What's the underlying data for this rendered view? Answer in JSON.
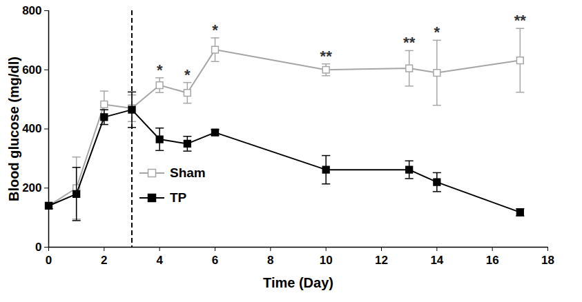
{
  "chart_data": {
    "type": "line",
    "x_label": "Time (Day)",
    "y_label": "Blood glucose (mg/dl)",
    "xlim": [
      0,
      18
    ],
    "xticks": [
      0,
      2,
      4,
      6,
      8,
      10,
      12,
      14,
      16,
      18
    ],
    "ylim": [
      0,
      800
    ],
    "yticks": [
      0,
      200,
      400,
      600,
      800
    ],
    "legend": "lower left",
    "x": [
      0,
      1,
      2,
      3,
      4,
      5,
      6,
      10,
      13,
      14,
      17
    ],
    "series": [
      {
        "name": "Sham",
        "color": "#a6a6a6",
        "marker": "open square",
        "line_style": "solid",
        "values": [
          140,
          200,
          483,
          470,
          548,
          522,
          668,
          600,
          605,
          590,
          632
        ],
        "errors": [
          10,
          105,
          45,
          45,
          25,
          35,
          40,
          20,
          60,
          110,
          108
        ]
      },
      {
        "name": "TP",
        "color": "#000000",
        "marker": "filled square",
        "line_style": "solid",
        "values": [
          140,
          180,
          440,
          465,
          365,
          350,
          388,
          262,
          262,
          220,
          118
        ],
        "errors": [
          10,
          90,
          25,
          60,
          38,
          25,
          10,
          48,
          30,
          32,
          12
        ]
      }
    ],
    "vlines": [
      {
        "x": 3,
        "line_style": "dashed"
      }
    ],
    "annotations": [
      {
        "x": 4,
        "text": "*"
      },
      {
        "x": 5,
        "text": "*"
      },
      {
        "x": 6,
        "text": "*"
      },
      {
        "x": 10,
        "text": "**"
      },
      {
        "x": 13,
        "text": "**"
      },
      {
        "x": 14,
        "text": "*"
      },
      {
        "x": 17,
        "text": "**"
      }
    ]
  }
}
